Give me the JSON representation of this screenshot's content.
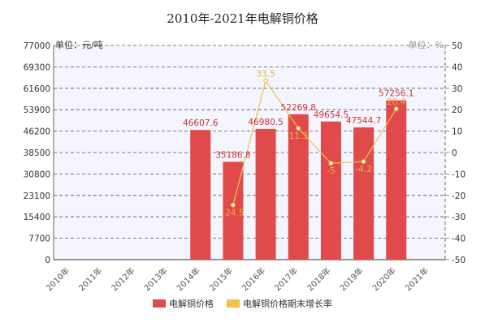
{
  "title": "2010年-2021年电解铜价格",
  "colors": {
    "bar": "#e04a4a",
    "line": "#f0c14b",
    "grid": "#555555",
    "plot_bg": "#f5f5ff"
  },
  "chart_data": {
    "type": "bar",
    "title": "2010年-2021年电解铜价格",
    "categories": [
      "2010年",
      "2011年",
      "2012年",
      "2013年",
      "2014年",
      "2015年",
      "2016年",
      "2017年",
      "2018年",
      "2019年",
      "2020年",
      "2021年"
    ],
    "left_axis": {
      "unit_label": "单位：元/吨",
      "ylim": [
        0,
        77000
      ],
      "ticks": [
        "77000",
        "69300",
        "61600",
        "53900",
        "46200",
        "38500",
        "30800",
        "23100",
        "15400",
        "7700",
        "0"
      ]
    },
    "right_axis": {
      "unit_label": "单位：%",
      "ylim": [
        -50,
        50
      ],
      "ticks": [
        "50",
        "40",
        "30",
        "20",
        "10",
        "0",
        "-10",
        "-20",
        "-30",
        "-40",
        "-50"
      ]
    },
    "series": [
      {
        "name": "电解铜价格",
        "type": "bar",
        "axis": "left",
        "values": [
          null,
          null,
          null,
          null,
          46607.6,
          35186.8,
          46980.5,
          52269.8,
          49654.5,
          47544.7,
          57256.1,
          null
        ],
        "labels": [
          "",
          "",
          "",
          "",
          "46607.6",
          "35186.8",
          "46980.5",
          "52269.8",
          "49654.5",
          "47544.7",
          "57256.1",
          ""
        ]
      },
      {
        "name": "电解铜价格期末增长率",
        "type": "line",
        "axis": "right",
        "values": [
          null,
          null,
          null,
          null,
          null,
          -24.5,
          33.5,
          11.3,
          -5,
          -4.2,
          20.4,
          null
        ],
        "labels": [
          "",
          "",
          "",
          "",
          "",
          "-24.5",
          "33.5",
          "11.3",
          "-5",
          "-4.2",
          "20.4",
          ""
        ]
      }
    ],
    "grid": true,
    "legend": "bottom"
  }
}
